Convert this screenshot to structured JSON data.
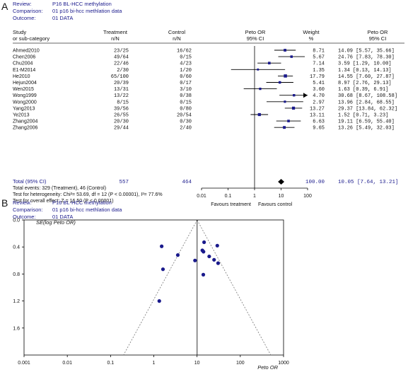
{
  "chart_data": [
    {
      "type": "forest",
      "panel_label": "A",
      "header": [
        {
          "label": "Review:",
          "value": "P16 BL-HCC methylation"
        },
        {
          "label": "Comparison:",
          "value": "01 p16 bi-hcc methlation data"
        },
        {
          "label": "Outcome:",
          "value": "01 DATA"
        }
      ],
      "columns": {
        "study": [
          "Study",
          "or sub-category"
        ],
        "treatment": [
          "Treatment",
          "n/N"
        ],
        "control": [
          "Control",
          "n/N"
        ],
        "or_plot": [
          "Peto OR",
          "95% CI"
        ],
        "weight": [
          "Weight",
          "%"
        ],
        "or_text": [
          "Peto OR",
          "95% CI"
        ]
      },
      "studies": [
        {
          "name": "Ahmed2010",
          "treatment": "23/25",
          "control": "16/62",
          "weight": "8.71",
          "or_ci": "14.09 [5.57, 35.66]",
          "or": 14.09,
          "lo": 5.57,
          "hi": 35.66
        },
        {
          "name": "Chen2006",
          "treatment": "49/64",
          "control": "0/15",
          "weight": "5.67",
          "or_ci": "24.76 [7.83, 78.30]",
          "or": 24.76,
          "lo": 7.83,
          "hi": 78.3
        },
        {
          "name": "Chu2004",
          "treatment": "22/46",
          "control": "4/23",
          "weight": "7.14",
          "or_ci": "3.59 [1.29, 10.00]",
          "or": 3.59,
          "lo": 1.29,
          "hi": 10.0
        },
        {
          "name": "E1-M2014",
          "treatment": "2/30",
          "control": "1/20",
          "weight": "1.35",
          "or_ci": "1.34 [0.13, 14.13]",
          "or": 1.34,
          "lo": 0.13,
          "hi": 14.13
        },
        {
          "name": "He2010",
          "treatment": "65/100",
          "control": "0/60",
          "weight": "17.79",
          "or_ci": "14.55 [7.60, 27.87]",
          "or": 14.55,
          "lo": 7.6,
          "hi": 27.87
        },
        {
          "name": "Hejun2004",
          "treatment": "20/39",
          "control": "0/17",
          "weight": "5.41",
          "or_ci": "8.97 [2.76, 29.13]",
          "or": 8.97,
          "lo": 2.76,
          "hi": 29.13
        },
        {
          "name": "Wen2015",
          "treatment": "13/31",
          "control": "3/10",
          "weight": "3.60",
          "or_ci": "1.63 [0.39, 6.91]",
          "or": 1.63,
          "lo": 0.39,
          "hi": 6.91
        },
        {
          "name": "Wong1999",
          "treatment": "13/22",
          "control": "0/38",
          "weight": "4.70",
          "or_ci": "30.68 [8.67, 108.58]",
          "or": 30.68,
          "lo": 8.67,
          "hi": 108.58,
          "arrow": true
        },
        {
          "name": "Wong2000",
          "treatment": "8/15",
          "control": "0/15",
          "weight": "2.97",
          "or_ci": "13.96 [2.84, 68.55]",
          "or": 13.96,
          "lo": 2.84,
          "hi": 68.55
        },
        {
          "name": "Yang2013",
          "treatment": "39/56",
          "control": "0/80",
          "weight": "13.27",
          "or_ci": "29.37 [13.84, 62.32]",
          "or": 29.37,
          "lo": 13.84,
          "hi": 62.32
        },
        {
          "name": "Ye2013",
          "treatment": "26/55",
          "control": "20/54",
          "weight": "13.11",
          "or_ci": "1.52 [0.71, 3.23]",
          "or": 1.52,
          "lo": 0.71,
          "hi": 3.23
        },
        {
          "name": "Zhang2004",
          "treatment": "20/30",
          "control": "0/30",
          "weight": "6.63",
          "or_ci": "19.11 [6.59, 55.40]",
          "or": 19.11,
          "lo": 6.59,
          "hi": 55.4
        },
        {
          "name": "Zhang2006",
          "treatment": "29/44",
          "control": "2/40",
          "weight": "9.65",
          "or_ci": "13.26 [5.49, 32.03]",
          "or": 13.26,
          "lo": 5.49,
          "hi": 32.03
        }
      ],
      "total": {
        "name": "Total (95% CI)",
        "treatment": "557",
        "control": "464",
        "weight": "100.00",
        "or_ci": "10.05 [7.64, 13.21]",
        "or": 10.05,
        "lo": 7.64,
        "hi": 13.21
      },
      "footnotes": [
        "Total events: 329 (Treatment), 46 (Control)",
        "Test for heterogeneity: Chi²= 53.69, df = 12 (P < 0.00001), I²= 77.6%",
        "Test for overall effect: Z = 16.50 (P < 0.00001)"
      ],
      "x_axis": {
        "scale": "log",
        "ticks": [
          0.01,
          0.1,
          1,
          10,
          100
        ],
        "tick_labels": [
          "0.01",
          "0.1",
          "1",
          "10",
          "100"
        ],
        "range": [
          0.01,
          100
        ]
      },
      "favours_left": "Favours treatment",
      "favours_right": "Favours control"
    },
    {
      "type": "scatter",
      "subtype": "funnel",
      "panel_label": "B",
      "header": [
        {
          "label": "Review:",
          "value": "P16 BL-HCC methylation"
        },
        {
          "label": "Comparison:",
          "value": "01 p16 bi-hcc methlation data"
        },
        {
          "label": "Outcome:",
          "value": "01 DATA"
        }
      ],
      "ylabel": "SE(log Peto OR)",
      "xlabel": "Peto OR",
      "x_axis": {
        "scale": "log",
        "range": [
          0.001,
          1000
        ],
        "tick_labels": [
          "0.001",
          "0.01",
          "0.1",
          "1",
          "10",
          "100",
          "1000"
        ],
        "ticks": [
          0.001,
          0.01,
          0.1,
          1,
          10,
          100,
          1000
        ]
      },
      "y_axis": {
        "reversed": true,
        "range": [
          0.0,
          2.0
        ],
        "tick_labels": [
          "0.0",
          "0.4",
          "0.8",
          "1.2",
          "1.6"
        ],
        "ticks": [
          0.0,
          0.4,
          0.8,
          1.2,
          1.6
        ]
      },
      "pooled_or": 10.05,
      "points": [
        {
          "x": 14.09,
          "y": 0.47
        },
        {
          "x": 24.76,
          "y": 0.59
        },
        {
          "x": 3.59,
          "y": 0.52
        },
        {
          "x": 1.34,
          "y": 1.2
        },
        {
          "x": 14.55,
          "y": 0.33
        },
        {
          "x": 8.97,
          "y": 0.6
        },
        {
          "x": 1.63,
          "y": 0.73
        },
        {
          "x": 30.68,
          "y": 0.64
        },
        {
          "x": 13.96,
          "y": 0.81
        },
        {
          "x": 29.37,
          "y": 0.38
        },
        {
          "x": 1.52,
          "y": 0.39
        },
        {
          "x": 19.11,
          "y": 0.54
        },
        {
          "x": 13.26,
          "y": 0.45
        }
      ]
    }
  ]
}
